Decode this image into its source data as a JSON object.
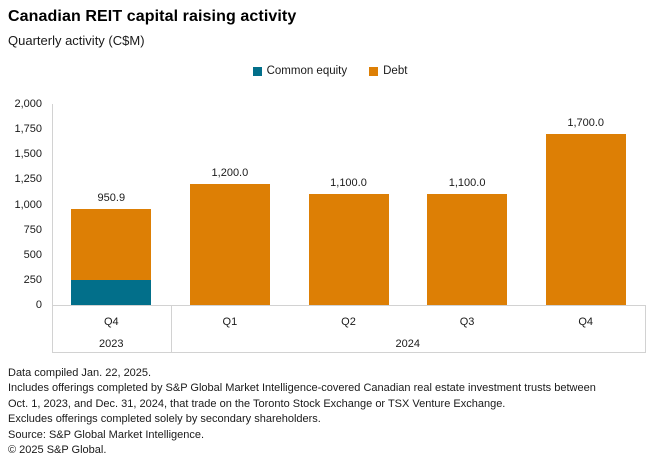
{
  "header": {
    "title": "Canadian REIT capital raising activity",
    "subtitle": "Quarterly activity (C$M)"
  },
  "chart_data": {
    "type": "bar",
    "stacked": true,
    "title": "Canadian REIT capital raising activity",
    "subtitle": "Quarterly activity (C$M)",
    "unit": "C$M",
    "legend_position": "top-center",
    "grid": false,
    "ylim": [
      0,
      2000
    ],
    "y_ticks": [
      "2,000",
      "1,750",
      "1,500",
      "1,250",
      "1,000",
      "750",
      "500",
      "250",
      "0"
    ],
    "legend": [
      {
        "name": "Common equity",
        "color": "#026F8A"
      },
      {
        "name": "Debt",
        "color": "#DD7F05"
      }
    ],
    "groups": [
      {
        "year": "2023",
        "count": 1
      },
      {
        "year": "2024",
        "count": 4
      }
    ],
    "categories": [
      "Q4",
      "Q1",
      "Q2",
      "Q3",
      "Q4"
    ],
    "series": [
      {
        "name": "Common equity",
        "color": "#026F8A",
        "values": [
          250.9,
          0,
          0,
          0,
          0
        ]
      },
      {
        "name": "Debt",
        "color": "#DD7F05",
        "values": [
          700.0,
          1200.0,
          1100.0,
          1100.0,
          1700.0
        ]
      }
    ],
    "totals": [
      950.9,
      1200.0,
      1100.0,
      1100.0,
      1700.0
    ],
    "total_labels": [
      "950.9",
      "1,200.0",
      "1,100.0",
      "1,100.0",
      "1,700.0"
    ]
  },
  "footer": {
    "lines": [
      "Data compiled Jan. 22, 2025.",
      "Includes offerings completed by S&P Global Market Intelligence-covered Canadian real estate investment trusts between",
      "Oct. 1, 2023, and Dec. 31, 2024, that trade on the Toronto Stock Exchange or TSX Venture Exchange.",
      "Excludes offerings completed solely by secondary shareholders.",
      "Source: S&P Global Market Intelligence.",
      "© 2025 S&P Global."
    ]
  }
}
